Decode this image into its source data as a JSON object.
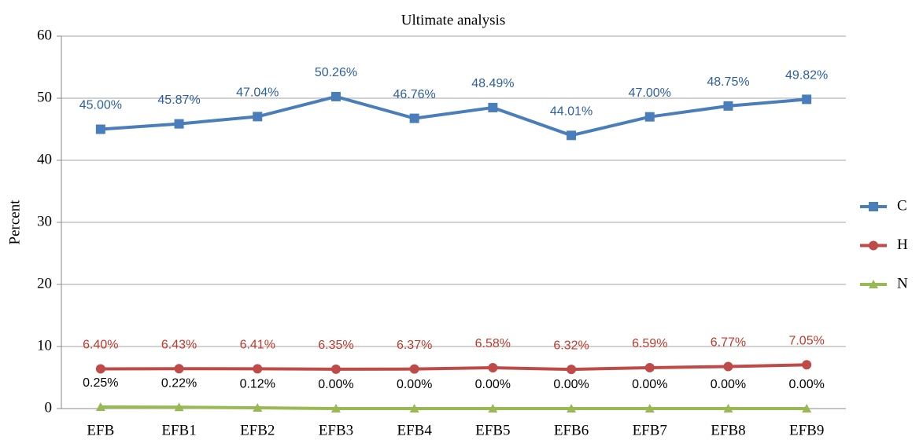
{
  "chart_data": {
    "type": "line",
    "title": "Ultimate analysis",
    "y_label": "Percent",
    "categories": [
      "EFB",
      "EFB1",
      "EFB2",
      "EFB3",
      "EFB4",
      "EFB5",
      "EFB6",
      "EFB7",
      "EFB8",
      "EFB9"
    ],
    "series": [
      {
        "name": "C",
        "color": "#4a7ebb",
        "label_color": "#2e5f9e",
        "marker": "square",
        "values": [
          45.0,
          45.87,
          47.04,
          50.26,
          46.76,
          48.49,
          44.01,
          47.0,
          48.75,
          49.82
        ],
        "value_labels": [
          "45.00%",
          "45.87%",
          "47.04%",
          "50.26%",
          "46.76%",
          "48.49%",
          "44.01%",
          "47.00%",
          "48.75%",
          "49.82%"
        ]
      },
      {
        "name": "H",
        "color": "#be4b48",
        "label_color": "#c0392b",
        "marker": "circle",
        "values": [
          6.4,
          6.43,
          6.41,
          6.35,
          6.37,
          6.58,
          6.32,
          6.59,
          6.77,
          7.05
        ],
        "value_labels": [
          "6.40%",
          "6.43%",
          "6.41%",
          "6.35%",
          "6.37%",
          "6.58%",
          "6.32%",
          "6.59%",
          "6.77%",
          "7.05%"
        ]
      },
      {
        "name": "N",
        "color": "#98b954",
        "label_color": "#000000",
        "marker": "triangle",
        "values": [
          0.25,
          0.22,
          0.12,
          0.0,
          0.0,
          0.0,
          0.0,
          0.0,
          0.0,
          0.0
        ],
        "value_labels": [
          "0.25%",
          "0.22%",
          "0.12%",
          "0.00%",
          "0.00%",
          "0.00%",
          "0.00%",
          "0.00%",
          "0.00%",
          "0.00%"
        ]
      }
    ],
    "ylim": [
      0,
      60
    ],
    "yticks": [
      0,
      10,
      20,
      30,
      40,
      50,
      60
    ],
    "grid": true,
    "legend": "right"
  }
}
